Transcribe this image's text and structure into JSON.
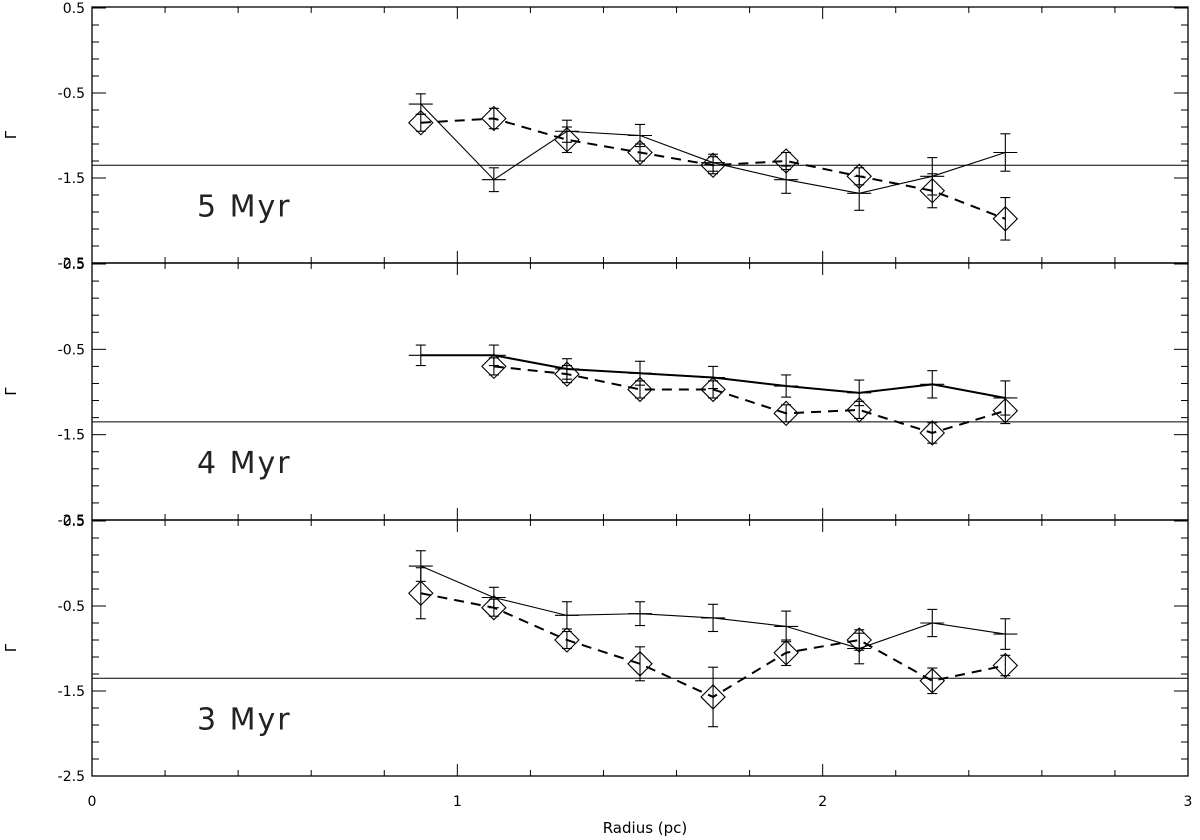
{
  "chart_data": {
    "type": "line",
    "xlabel": "Radius (pc)",
    "ylabel": "Γ",
    "xlim": [
      0,
      3
    ],
    "xticks": [
      "0",
      "1",
      "2",
      "3"
    ],
    "ylim": [
      -2.5,
      0.5
    ],
    "yticks": [
      "0.5",
      "-0.5",
      "-1.5",
      "-2.5"
    ],
    "reference_line": -1.35,
    "x": [
      0.9,
      1.1,
      1.3,
      1.5,
      1.7,
      1.9,
      2.1,
      2.3,
      2.5
    ],
    "panels": [
      {
        "label": "5 Myr",
        "series": [
          {
            "style": "solid-cross",
            "values": [
              -0.63,
              -1.52,
              -0.95,
              -1.0,
              -1.32,
              -1.52,
              -1.68,
              -1.48,
              -1.2
            ],
            "errors": [
              0.12,
              0.14,
              0.13,
              0.13,
              0.1,
              0.16,
              0.2,
              0.22,
              0.22
            ]
          },
          {
            "style": "dashed-diamond",
            "values": [
              -0.85,
              -0.8,
              -1.05,
              -1.2,
              -1.35,
              -1.3,
              -1.48,
              -1.65,
              -1.98
            ],
            "errors": [
              0.1,
              0.12,
              0.15,
              0.1,
              0.1,
              0.1,
              0.1,
              0.2,
              0.25
            ]
          }
        ]
      },
      {
        "label": "4 Myr",
        "series": [
          {
            "style": "solid-cross",
            "values": [
              -0.57,
              -0.57,
              -0.73,
              -0.78,
              -0.83,
              -0.93,
              -1.01,
              -0.91,
              -1.07
            ],
            "errors": [
              0.12,
              0.12,
              0.12,
              0.14,
              0.13,
              0.13,
              0.15,
              0.16,
              0.2
            ]
          },
          {
            "style": "dashed-diamond",
            "values": [
              null,
              -0.7,
              -0.79,
              -0.97,
              -0.97,
              -1.25,
              -1.21,
              -1.48,
              -1.22
            ],
            "errors": [
              null,
              0.1,
              0.1,
              0.1,
              0.1,
              0.1,
              0.1,
              0.12,
              0.15
            ]
          }
        ]
      },
      {
        "label": "3 Myr",
        "series": [
          {
            "style": "solid-cross",
            "values": [
              -0.03,
              -0.4,
              -0.61,
              -0.59,
              -0.64,
              -0.74,
              -1.0,
              -0.7,
              -0.83
            ],
            "errors": [
              0.18,
              0.12,
              0.16,
              0.14,
              0.16,
              0.18,
              0.18,
              0.16,
              0.18
            ]
          },
          {
            "style": "dashed-diamond",
            "values": [
              -0.35,
              -0.52,
              -0.9,
              -1.18,
              -1.57,
              -1.05,
              -0.9,
              -1.38,
              -1.2
            ],
            "errors": [
              0.3,
              0.1,
              0.1,
              0.2,
              0.35,
              0.15,
              0.12,
              0.15,
              0.12
            ]
          }
        ]
      }
    ]
  }
}
